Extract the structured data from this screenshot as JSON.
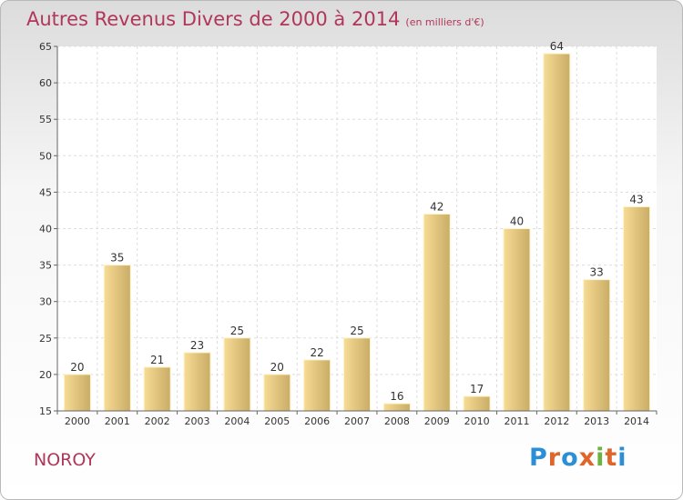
{
  "header": {
    "title": "Autres Revenus Divers de 2000 à 2014",
    "subtitle": "(en milliers d'€)"
  },
  "footer": {
    "place": "NOROY",
    "logo": [
      "P",
      "r",
      "o",
      "x",
      "i",
      "t",
      "i"
    ],
    "logo_colors": [
      "#2c8fd6",
      "#e0652a",
      "#2c8fd6",
      "#e0652a",
      "#6cb33f",
      "#e0652a",
      "#2c8fd6"
    ]
  },
  "chart_data": {
    "type": "bar",
    "categories": [
      "2000",
      "2001",
      "2002",
      "2003",
      "2004",
      "2005",
      "2006",
      "2007",
      "2008",
      "2009",
      "2010",
      "2011",
      "2012",
      "2013",
      "2014"
    ],
    "values": [
      20,
      35,
      21,
      23,
      25,
      20,
      22,
      25,
      16,
      42,
      17,
      40,
      64,
      33,
      43
    ],
    "title": "Autres Revenus Divers de 2000 à 2014",
    "subtitle": "(en milliers d'€)",
    "xlabel": "",
    "ylabel": "",
    "ylim": [
      15,
      65
    ],
    "yticks": [
      15,
      20,
      25,
      30,
      35,
      40,
      45,
      50,
      55,
      60,
      65
    ],
    "grid": true,
    "bar_color_light": "#f7dc95",
    "bar_color_dark": "#c9ac66"
  }
}
